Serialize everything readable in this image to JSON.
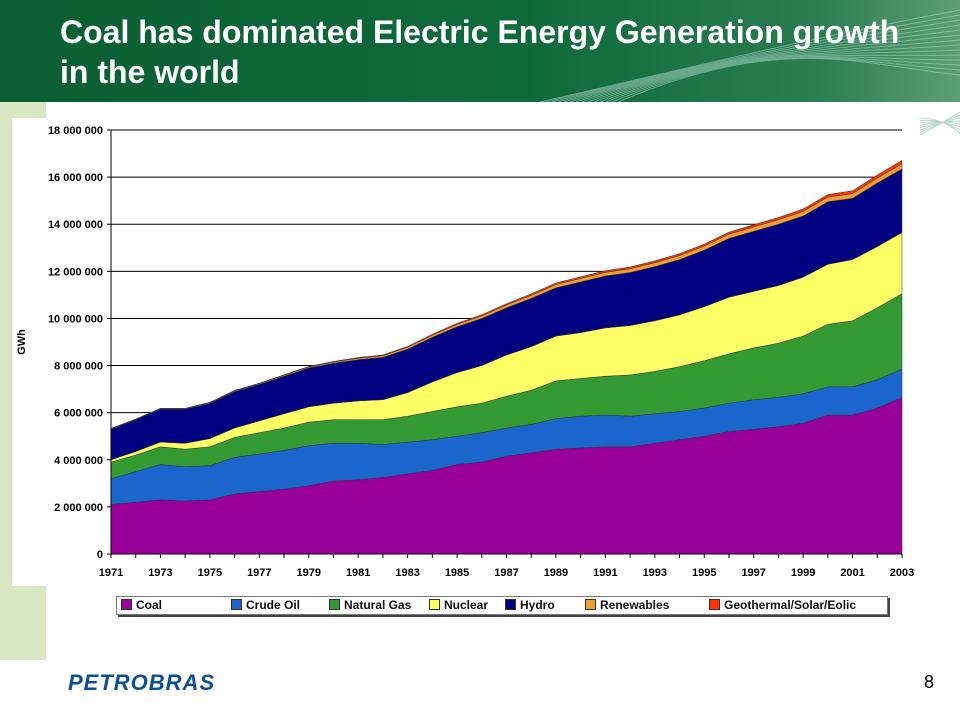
{
  "slide": {
    "title": "Coal has dominated Electric Energy Generation growth in the world",
    "logo": "PETROBRAS",
    "page_number": "8",
    "colors": {
      "header_green": "#0f6a3b",
      "side_band": "#d8e8c4",
      "logo_blue": "#0b4e9a"
    }
  },
  "chart_data": {
    "type": "area",
    "stacked": true,
    "title": "",
    "xlabel": "",
    "ylabel": "GWh",
    "x": [
      1971,
      1972,
      1973,
      1974,
      1975,
      1976,
      1977,
      1978,
      1979,
      1980,
      1981,
      1982,
      1983,
      1984,
      1985,
      1986,
      1987,
      1988,
      1989,
      1990,
      1991,
      1992,
      1993,
      1994,
      1995,
      1996,
      1997,
      1998,
      1999,
      2000,
      2001,
      2002,
      2003
    ],
    "x_tick_labels": [
      "1971",
      "1973",
      "1975",
      "1977",
      "1979",
      "1981",
      "1983",
      "1985",
      "1987",
      "1989",
      "1991",
      "1993",
      "1995",
      "1997",
      "1999",
      "2001",
      "2003"
    ],
    "y_tick_labels": [
      "0",
      "2 000 000",
      "4 000 000",
      "6 000 000",
      "8 000 000",
      "10 000 000",
      "12 000 000",
      "14 000 000",
      "16 000 000",
      "18 000 000"
    ],
    "ylim": [
      0,
      18000000
    ],
    "grid": "horizontal",
    "legend_position": "bottom",
    "series": [
      {
        "name": "Coal",
        "color": "#990099",
        "values": [
          2100000,
          2200000,
          2300000,
          2250000,
          2300000,
          2550000,
          2650000,
          2750000,
          2900000,
          3100000,
          3150000,
          3250000,
          3400000,
          3550000,
          3800000,
          3900000,
          4150000,
          4300000,
          4450000,
          4500000,
          4550000,
          4550000,
          4700000,
          4850000,
          5000000,
          5200000,
          5300000,
          5400000,
          5550000,
          5900000,
          5900000,
          6200000,
          6650000
        ]
      },
      {
        "name": "Crude Oil",
        "color": "#1a66cc",
        "values": [
          1100000,
          1300000,
          1500000,
          1450000,
          1450000,
          1550000,
          1600000,
          1650000,
          1700000,
          1600000,
          1550000,
          1400000,
          1350000,
          1300000,
          1200000,
          1250000,
          1200000,
          1200000,
          1300000,
          1350000,
          1350000,
          1300000,
          1250000,
          1200000,
          1200000,
          1200000,
          1250000,
          1250000,
          1250000,
          1200000,
          1200000,
          1200000,
          1200000
        ]
      },
      {
        "name": "Natural Gas",
        "color": "#339933",
        "values": [
          700000,
          700000,
          750000,
          750000,
          800000,
          850000,
          900000,
          950000,
          1000000,
          1000000,
          1000000,
          1050000,
          1100000,
          1200000,
          1250000,
          1250000,
          1350000,
          1450000,
          1600000,
          1600000,
          1650000,
          1750000,
          1800000,
          1900000,
          2000000,
          2100000,
          2200000,
          2300000,
          2450000,
          2650000,
          2800000,
          3050000,
          3200000
        ]
      },
      {
        "name": "Nuclear",
        "color": "#ffff66",
        "values": [
          100000,
          150000,
          200000,
          250000,
          350000,
          400000,
          500000,
          600000,
          650000,
          700000,
          800000,
          850000,
          1000000,
          1250000,
          1450000,
          1600000,
          1750000,
          1850000,
          1900000,
          1950000,
          2050000,
          2100000,
          2150000,
          2200000,
          2300000,
          2400000,
          2400000,
          2450000,
          2500000,
          2550000,
          2600000,
          2600000,
          2600000
        ]
      },
      {
        "name": "Hydro",
        "color": "#000080",
        "values": [
          1300000,
          1350000,
          1400000,
          1450000,
          1500000,
          1550000,
          1550000,
          1600000,
          1650000,
          1700000,
          1750000,
          1800000,
          1850000,
          1900000,
          1950000,
          2000000,
          2000000,
          2050000,
          2050000,
          2150000,
          2200000,
          2250000,
          2300000,
          2350000,
          2400000,
          2500000,
          2550000,
          2600000,
          2600000,
          2650000,
          2600000,
          2700000,
          2700000
        ]
      },
      {
        "name": "Renewables",
        "color": "#f0a030",
        "values": [
          20000,
          20000,
          25000,
          25000,
          30000,
          30000,
          35000,
          40000,
          45000,
          50000,
          60000,
          70000,
          80000,
          90000,
          100000,
          110000,
          120000,
          130000,
          140000,
          150000,
          155000,
          160000,
          165000,
          170000,
          175000,
          180000,
          185000,
          190000,
          195000,
          200000,
          200000,
          210000,
          220000
        ]
      },
      {
        "name": "Geothermal/Solar/Eolic",
        "color": "#ff3300",
        "values": [
          10000,
          10000,
          10000,
          12000,
          12000,
          14000,
          16000,
          18000,
          20000,
          25000,
          30000,
          32000,
          35000,
          40000,
          45000,
          50000,
          55000,
          60000,
          65000,
          70000,
          72000,
          74000,
          76000,
          78000,
          80000,
          85000,
          90000,
          95000,
          100000,
          110000,
          120000,
          130000,
          140000
        ]
      }
    ]
  }
}
